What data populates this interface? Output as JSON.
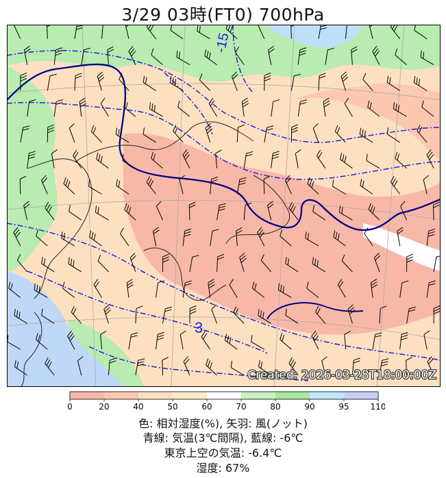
{
  "title": "3/29  03時(FT0)     700hPa",
  "created": "Created: 2026-03-28T18:00:00Z",
  "contour_labels": [
    "-15",
    "3"
  ],
  "colorbar": {
    "ticks": [
      "0",
      "20",
      "40",
      "50",
      "60",
      "70",
      "80",
      "90",
      "95",
      "110"
    ],
    "colors": [
      "#f8b8a8",
      "#fcc8b0",
      "#fde0c0",
      "#feeac8",
      "#ffffff",
      "#c8f0c0",
      "#a8e8a0",
      "#c0e8f8",
      "#c8d0f8"
    ]
  },
  "captions": {
    "line1": "色: 相対湿度(%),  矢羽: 風(ノット)",
    "line2": "青線: 気温(3℃間隔), 藍線: -6℃",
    "line3": "東京上空の気温: -6.4℃",
    "line4": "湿度: 67%"
  },
  "colors": {
    "temp_line": "#2020e0",
    "minus6_line": "#00008b",
    "coast": "#222222",
    "barb": "#000000"
  }
}
